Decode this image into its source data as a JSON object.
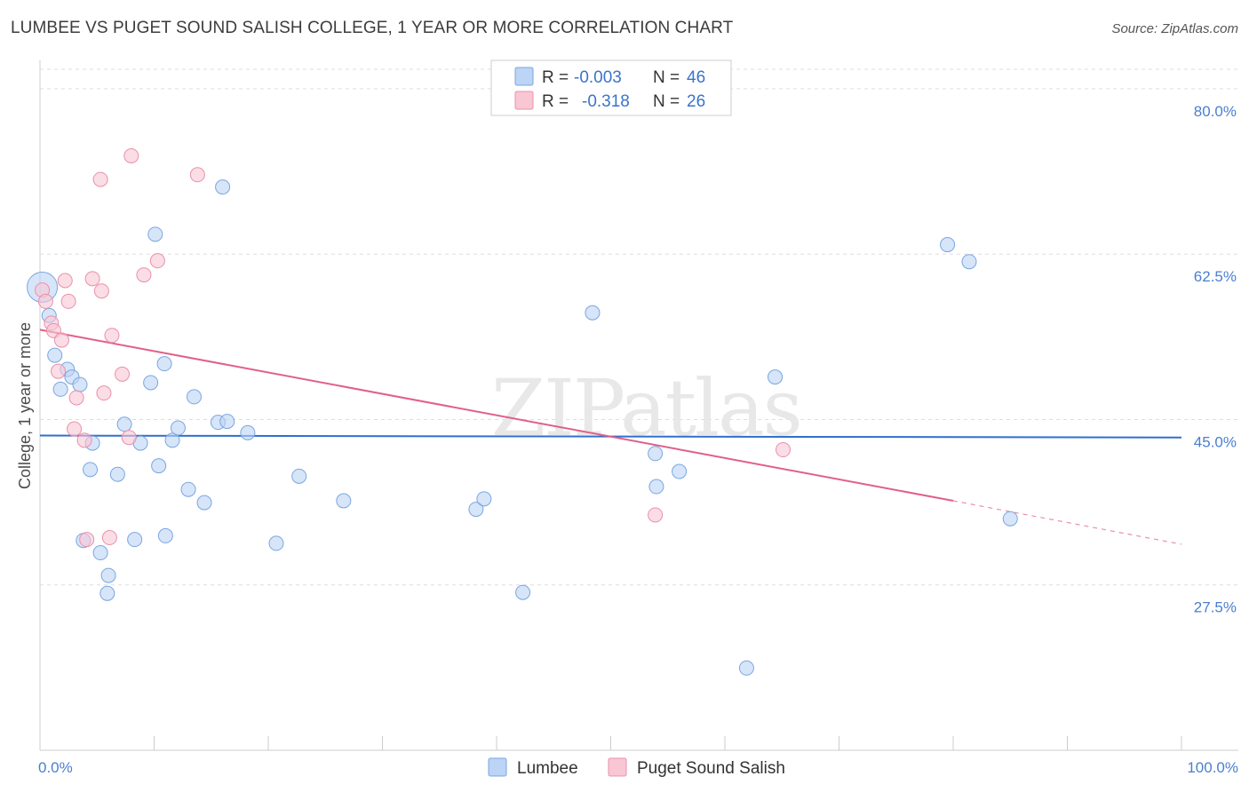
{
  "title": "LUMBEE VS PUGET SOUND SALISH COLLEGE, 1 YEAR OR MORE CORRELATION CHART",
  "source": "Source: ZipAtlas.com",
  "watermark": "ZIPatlas",
  "legend_top": {
    "rows": [
      {
        "r_label": "R =",
        "r_value": "-0.003",
        "n_label": "N =",
        "n_value": "46"
      },
      {
        "r_label": "R =",
        "r_value": "-0.318",
        "n_label": "N =",
        "n_value": "26"
      }
    ]
  },
  "colors": {
    "lumbee_fill": "#bcd4f5",
    "lumbee_stroke": "#7aa6e0",
    "lumbee_line": "#2f6fcf",
    "salish_fill": "#f9c6d4",
    "salish_stroke": "#ea90ab",
    "salish_line": "#e0608a",
    "tick_text": "#4a7fcf",
    "grid": "#dddddd"
  },
  "chart_data": {
    "type": "scatter",
    "title": "LUMBEE VS PUGET SOUND SALISH COLLEGE, 1 YEAR OR MORE CORRELATION CHART",
    "xlabel": "",
    "ylabel": "College, 1 year or more",
    "xlim": [
      0,
      100
    ],
    "ylim": [
      10,
      83
    ],
    "x_tick_labels": [
      "0.0%",
      "100.0%"
    ],
    "y_ticks": [
      27.5,
      45.0,
      62.5,
      80.0
    ],
    "y_tick_labels": [
      "27.5%",
      "45.0%",
      "62.5%",
      "80.0%"
    ],
    "legend_placement": "top-center",
    "series": [
      {
        "name": "Lumbee",
        "r": -0.003,
        "n": 46,
        "trend": {
          "x": [
            0,
            100
          ],
          "y": [
            43.3,
            43.1
          ]
        },
        "points": [
          {
            "x": 0.2,
            "y": 59.0,
            "big": true
          },
          {
            "x": 0.8,
            "y": 56.0
          },
          {
            "x": 1.3,
            "y": 51.8
          },
          {
            "x": 1.8,
            "y": 48.2
          },
          {
            "x": 2.4,
            "y": 50.3
          },
          {
            "x": 2.8,
            "y": 49.5
          },
          {
            "x": 3.5,
            "y": 48.7
          },
          {
            "x": 4.6,
            "y": 42.5
          },
          {
            "x": 4.4,
            "y": 39.7
          },
          {
            "x": 3.8,
            "y": 32.2
          },
          {
            "x": 5.3,
            "y": 30.9
          },
          {
            "x": 6.0,
            "y": 28.5
          },
          {
            "x": 5.9,
            "y": 26.6
          },
          {
            "x": 6.8,
            "y": 39.2
          },
          {
            "x": 7.4,
            "y": 44.5
          },
          {
            "x": 8.3,
            "y": 32.3
          },
          {
            "x": 8.8,
            "y": 42.5
          },
          {
            "x": 9.7,
            "y": 48.9
          },
          {
            "x": 10.4,
            "y": 40.1
          },
          {
            "x": 11.0,
            "y": 32.7
          },
          {
            "x": 11.6,
            "y": 42.8
          },
          {
            "x": 10.1,
            "y": 64.6
          },
          {
            "x": 10.9,
            "y": 50.9
          },
          {
            "x": 12.1,
            "y": 44.1
          },
          {
            "x": 13.0,
            "y": 37.6
          },
          {
            "x": 13.5,
            "y": 47.4
          },
          {
            "x": 14.4,
            "y": 36.2
          },
          {
            "x": 15.6,
            "y": 44.7
          },
          {
            "x": 16.4,
            "y": 44.8
          },
          {
            "x": 16.0,
            "y": 69.6
          },
          {
            "x": 18.2,
            "y": 43.6
          },
          {
            "x": 20.7,
            "y": 31.9
          },
          {
            "x": 22.7,
            "y": 39.0
          },
          {
            "x": 26.6,
            "y": 36.4
          },
          {
            "x": 38.2,
            "y": 35.5
          },
          {
            "x": 38.9,
            "y": 36.6
          },
          {
            "x": 42.3,
            "y": 26.7
          },
          {
            "x": 48.4,
            "y": 56.3
          },
          {
            "x": 53.9,
            "y": 41.4
          },
          {
            "x": 54.0,
            "y": 37.9
          },
          {
            "x": 56.0,
            "y": 39.5
          },
          {
            "x": 61.9,
            "y": 18.7
          },
          {
            "x": 64.4,
            "y": 49.5
          },
          {
            "x": 79.5,
            "y": 63.5
          },
          {
            "x": 81.4,
            "y": 61.7
          },
          {
            "x": 85.0,
            "y": 34.5
          }
        ]
      },
      {
        "name": "Puget Sound Salish",
        "r": -0.318,
        "n": 26,
        "trend": {
          "x": [
            0,
            80
          ],
          "y": [
            54.5,
            36.4
          ]
        },
        "trend_dashed": {
          "x": [
            80,
            100
          ],
          "y": [
            36.4,
            31.8
          ]
        },
        "points": [
          {
            "x": 0.2,
            "y": 58.7
          },
          {
            "x": 0.5,
            "y": 57.5
          },
          {
            "x": 1.0,
            "y": 55.2
          },
          {
            "x": 1.2,
            "y": 54.4
          },
          {
            "x": 1.6,
            "y": 50.1
          },
          {
            "x": 1.9,
            "y": 53.4
          },
          {
            "x": 2.2,
            "y": 59.7
          },
          {
            "x": 2.5,
            "y": 57.5
          },
          {
            "x": 3.0,
            "y": 44.0
          },
          {
            "x": 3.2,
            "y": 47.3
          },
          {
            "x": 3.9,
            "y": 42.8
          },
          {
            "x": 4.1,
            "y": 32.3
          },
          {
            "x": 4.6,
            "y": 59.9
          },
          {
            "x": 5.3,
            "y": 70.4
          },
          {
            "x": 5.4,
            "y": 58.6
          },
          {
            "x": 5.6,
            "y": 47.8
          },
          {
            "x": 6.3,
            "y": 53.9
          },
          {
            "x": 6.1,
            "y": 32.5
          },
          {
            "x": 7.2,
            "y": 49.8
          },
          {
            "x": 7.8,
            "y": 43.1
          },
          {
            "x": 8.0,
            "y": 72.9
          },
          {
            "x": 9.1,
            "y": 60.3
          },
          {
            "x": 10.3,
            "y": 61.8
          },
          {
            "x": 13.8,
            "y": 70.9
          },
          {
            "x": 53.9,
            "y": 34.9
          },
          {
            "x": 65.1,
            "y": 41.8
          }
        ]
      }
    ]
  },
  "bottom_legend": {
    "items": [
      {
        "label": "Lumbee"
      },
      {
        "label": "Puget Sound Salish"
      }
    ]
  }
}
